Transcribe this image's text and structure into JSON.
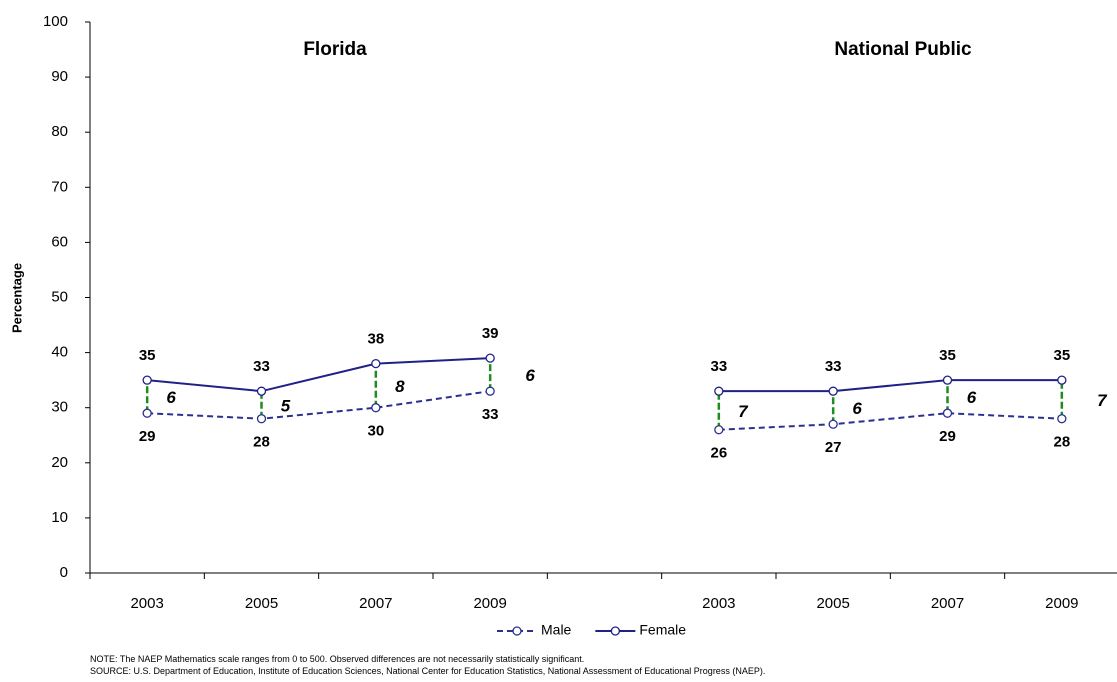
{
  "chart_data": {
    "type": "line",
    "y_label": "Percentage",
    "panel_titles": [
      "Florida",
      "National Public"
    ],
    "categories": [
      "2003",
      "2005",
      "2007",
      "2009",
      null,
      "2003",
      "2005",
      "2007",
      "2009"
    ],
    "series": [
      {
        "name": "Male",
        "color": "#2b2f8f",
        "dashed": true,
        "values": [
          29,
          28,
          30,
          33,
          null,
          26,
          27,
          29,
          28
        ]
      },
      {
        "name": "Female",
        "color": "#1f2189",
        "dashed": false,
        "values": [
          35,
          33,
          38,
          39,
          null,
          33,
          33,
          35,
          35
        ]
      }
    ],
    "differences": [
      6,
      5,
      8,
      6,
      null,
      7,
      6,
      6,
      7
    ],
    "difference_color": "#1e8c1e",
    "ylim": [
      0,
      100
    ],
    "yticks": [
      0,
      10,
      20,
      30,
      40,
      50,
      60,
      70,
      80,
      90,
      100
    ],
    "notes": [
      "NOTE: The NAEP Mathematics scale ranges from 0 to 500. Observed differences are not necessarily statistically significant.",
      "SOURCE: U.S. Department of Education, Institute of Education Sciences, National Center for Education Statistics, National Assessment of Educational Progress (NAEP)."
    ]
  }
}
